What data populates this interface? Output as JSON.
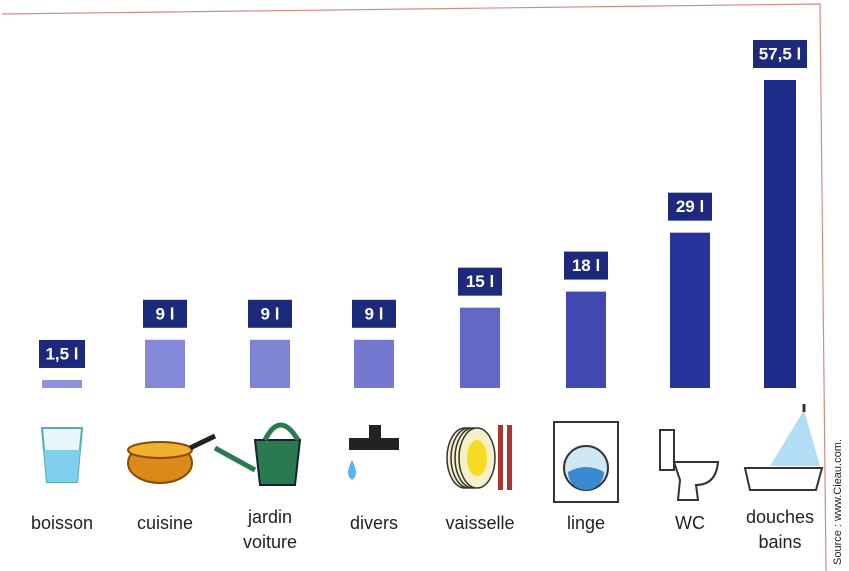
{
  "chart_data": {
    "type": "bar",
    "categories": [
      [
        "boisson"
      ],
      [
        "cuisine"
      ],
      [
        "jardin",
        "voiture"
      ],
      [
        "divers"
      ],
      [
        "vaisselle"
      ],
      [
        "linge"
      ],
      [
        "WC"
      ],
      [
        "douches",
        "bains"
      ]
    ],
    "values": [
      1.5,
      9,
      9,
      9,
      15,
      18,
      29,
      57.5
    ],
    "value_labels": [
      "1,5 l",
      "9 l",
      "9 l",
      "9 l",
      "15 l",
      "18 l",
      "29 l",
      "57,5 l"
    ],
    "colors": [
      "#8d93dd",
      "#8389d8",
      "#7e84d4",
      "#7479cf",
      "#6168c6",
      "#3f49b0",
      "#27349c",
      "#1c2a88"
    ],
    "label_color": "#1d2a7c",
    "source": "Source : www.Cieau.com."
  }
}
